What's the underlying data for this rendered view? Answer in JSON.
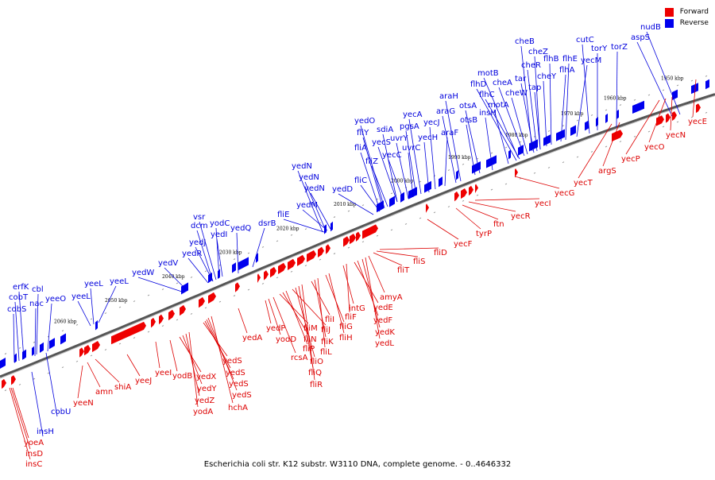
{
  "legend": {
    "items": [
      {
        "label": "Forward",
        "color": "#ee0000"
      },
      {
        "label": "Reverse",
        "color": "#0000ee"
      }
    ]
  },
  "caption": "Escherichia coli str. K12 substr. W3110 DNA, complete genome. - 0..4646332",
  "colors": {
    "forward": "#ee0000",
    "reverse": "#0000ee",
    "forward_label": "#dd0000",
    "reverse_label": "#0000dd",
    "backbone": "#666666"
  },
  "ticks": [
    "2060 kbp",
    "2050 kbp",
    "2040 kbp",
    "2030 kbp",
    "2020 kbp",
    "2010 kbp",
    "2000 kbp",
    "1990 kbp",
    "1980 kbp",
    "1970 kbp",
    "1960 kbp",
    "1950 kbp"
  ],
  "forward_genes": [
    "yoeA",
    "insD",
    "insC",
    "yeeN",
    "amn",
    "shiA",
    "yeeJ",
    "yeeI",
    "yodB",
    "yedX",
    "yedY",
    "yedZ",
    "yodA",
    "yedS",
    "yedS",
    "yedS",
    "yedS",
    "hchA",
    "yedA",
    "yedP",
    "yodD",
    "rcsA",
    "fliM",
    "fliN",
    "fliP",
    "fliJ",
    "fliO",
    "fliQ",
    "fliR",
    "fliI",
    "fliK",
    "fliL",
    "fliG",
    "fliH",
    "intG",
    "fliF",
    "yedE",
    "yedF",
    "yedK",
    "yedL",
    "amyA",
    "fliT",
    "fliS",
    "fliD",
    "yecF",
    "tyrP",
    "ftn",
    "yecR",
    "yecI",
    "yecG",
    "yecT",
    "argS",
    "yecP",
    "yecO",
    "yecN",
    "yecE"
  ],
  "reverse_genes": [
    "cobS",
    "cobT",
    "erfK",
    "nac",
    "cbl",
    "yeeO",
    "insH",
    "cobU",
    "yeeL",
    "yeeL",
    "yeeL",
    "yedW",
    "yedV",
    "yedR",
    "yedJ",
    "dcm",
    "vsr",
    "yedI",
    "yodC",
    "yedQ",
    "dsrB",
    "fliE",
    "yedM",
    "yedN",
    "yedN",
    "yedN",
    "fliC",
    "yedD",
    "fliA",
    "fliY",
    "fliZ",
    "yedO",
    "yecS",
    "yecC",
    "sdiA",
    "uvrY",
    "uvrC",
    "pgsA",
    "yecA",
    "yecH",
    "yecJ",
    "araF",
    "araG",
    "araH",
    "otsB",
    "otsA",
    "insH",
    "motA",
    "flhD",
    "flhC",
    "cheW",
    "cheA",
    "motB",
    "tar",
    "tap",
    "cheY",
    "cheR",
    "cheZ",
    "cheB",
    "flhB",
    "flhA",
    "flhE",
    "yecM",
    "cutC",
    "torY",
    "torZ",
    "aspS",
    "nudB"
  ]
}
